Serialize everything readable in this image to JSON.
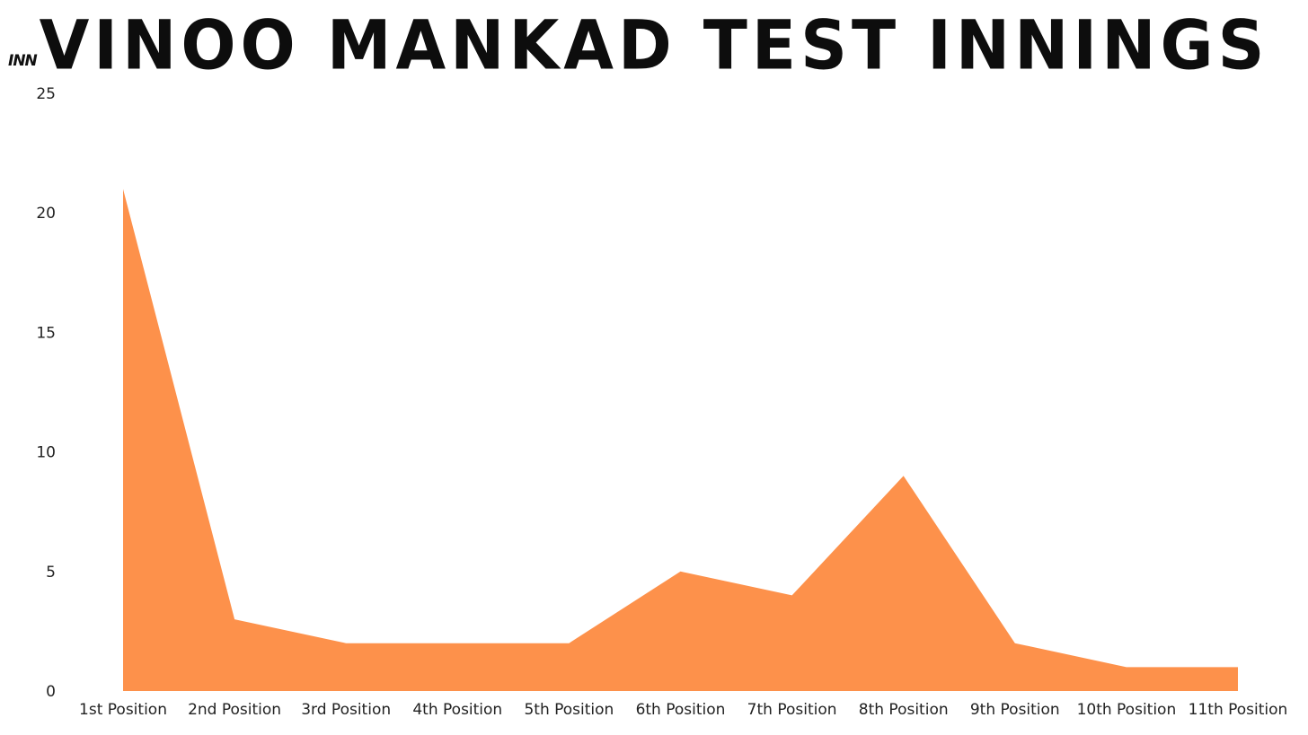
{
  "chart_data": {
    "type": "area",
    "title": "VINOO MANKAD TEST INNINGS",
    "ylabel": "INN",
    "xlabel": "",
    "categories": [
      "1st Position",
      "2nd Position",
      "3rd Position",
      "4th Position",
      "5th Position",
      "6th Position",
      "7th Position",
      "8th Position",
      "9th Position",
      "10th Position",
      "11th Position"
    ],
    "values": [
      21,
      3,
      2,
      2,
      2,
      5,
      4,
      9,
      2,
      1,
      1
    ],
    "ylim": [
      0,
      25
    ],
    "yticks": [
      0,
      5,
      10,
      15,
      20,
      25
    ],
    "grid": false,
    "legend": "none",
    "fill_color": "#fd914b"
  }
}
